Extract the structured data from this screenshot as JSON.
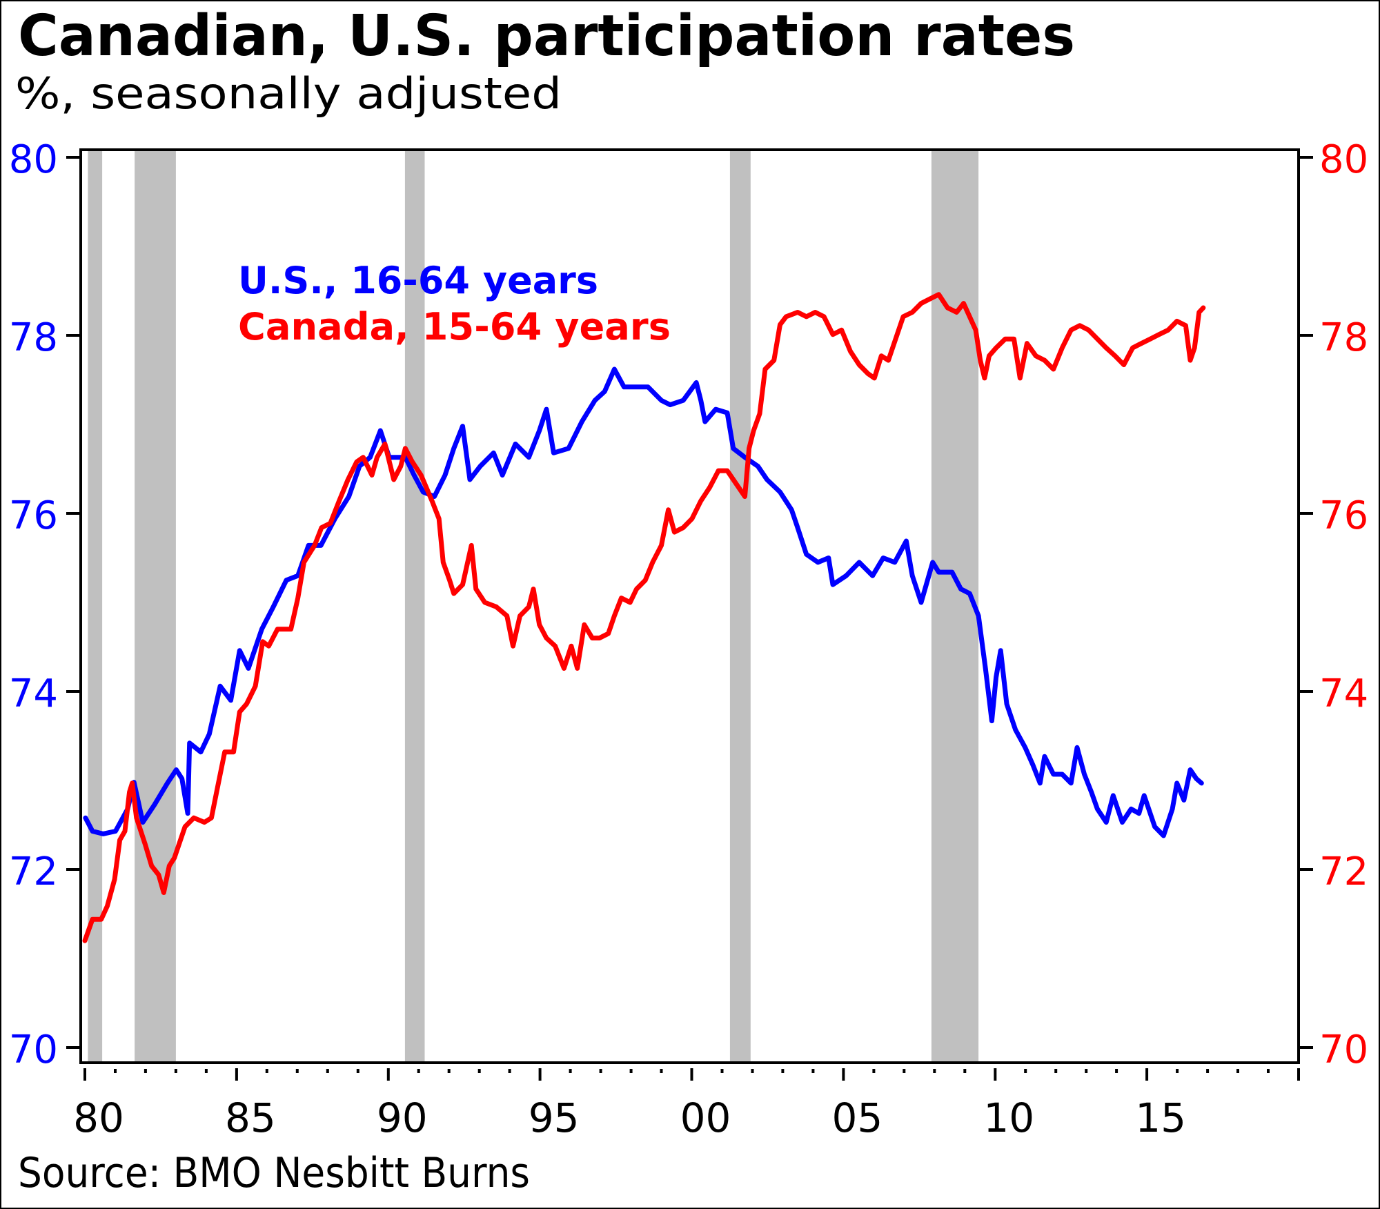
{
  "chart_data": {
    "type": "line",
    "title": "Canadian, U.S. participation rates",
    "subtitle": "%, seasonally adjusted",
    "source": "Source: BMO Nesbitt Burns",
    "xlabel": "",
    "ylabel": "",
    "xlim": [
      1980,
      2020
    ],
    "ylim": [
      70,
      80
    ],
    "ylim_right": [
      70,
      80
    ],
    "grid": false,
    "legend_placement": "top-left",
    "x_ticks": [
      {
        "value": 1980,
        "label": "80"
      },
      {
        "value": 1985,
        "label": "85"
      },
      {
        "value": 1990,
        "label": "90"
      },
      {
        "value": 1995,
        "label": "95"
      },
      {
        "value": 2000,
        "label": "00"
      },
      {
        "value": 2005,
        "label": "05"
      },
      {
        "value": 2010,
        "label": "10"
      },
      {
        "value": 2015,
        "label": "15"
      }
    ],
    "y_ticks_left": [
      {
        "value": 80,
        "label": "80"
      },
      {
        "value": 78,
        "label": "78"
      },
      {
        "value": 76,
        "label": "76"
      },
      {
        "value": 74,
        "label": "74"
      },
      {
        "value": 72,
        "label": "72"
      },
      {
        "value": 70,
        "label": "70"
      }
    ],
    "y_ticks_right": [
      {
        "value": 80,
        "label": "80"
      },
      {
        "value": 78,
        "label": "78"
      },
      {
        "value": 76,
        "label": "76"
      },
      {
        "value": 74,
        "label": "74"
      },
      {
        "value": 72,
        "label": "72"
      },
      {
        "value": 70,
        "label": "70"
      }
    ],
    "recessions": [
      [
        1980.1,
        1980.57
      ],
      [
        1981.64,
        1983.0
      ],
      [
        1990.55,
        1991.2
      ],
      [
        2001.26,
        2001.94
      ],
      [
        2007.9,
        2009.45
      ]
    ],
    "series": [
      {
        "name": "U.S., 16-64 years",
        "axis": "left",
        "color": "#0000ff",
        "points": [
          [
            1980.02,
            72.58
          ],
          [
            1980.25,
            72.43
          ],
          [
            1980.6,
            72.4
          ],
          [
            1981.01,
            72.43
          ],
          [
            1981.41,
            72.68
          ],
          [
            1981.62,
            72.98
          ],
          [
            1981.91,
            72.53
          ],
          [
            1982.3,
            72.73
          ],
          [
            1982.72,
            72.97
          ],
          [
            1983.01,
            73.12
          ],
          [
            1983.2,
            73.02
          ],
          [
            1983.39,
            72.63
          ],
          [
            1983.45,
            73.42
          ],
          [
            1983.82,
            73.32
          ],
          [
            1984.1,
            73.52
          ],
          [
            1984.46,
            74.06
          ],
          [
            1984.81,
            73.9
          ],
          [
            1985.1,
            74.46
          ],
          [
            1985.39,
            74.26
          ],
          [
            1985.83,
            74.7
          ],
          [
            1986.21,
            74.95
          ],
          [
            1986.64,
            75.25
          ],
          [
            1987.02,
            75.3
          ],
          [
            1987.37,
            75.64
          ],
          [
            1987.78,
            75.64
          ],
          [
            1988.24,
            75.94
          ],
          [
            1988.7,
            76.19
          ],
          [
            1989.05,
            76.53
          ],
          [
            1989.4,
            76.63
          ],
          [
            1989.74,
            76.93
          ],
          [
            1990.03,
            76.63
          ],
          [
            1990.56,
            76.63
          ],
          [
            1990.85,
            76.43
          ],
          [
            1991.15,
            76.24
          ],
          [
            1991.52,
            76.19
          ],
          [
            1991.87,
            76.43
          ],
          [
            1992.16,
            76.73
          ],
          [
            1992.45,
            76.98
          ],
          [
            1992.69,
            76.38
          ],
          [
            1993.03,
            76.53
          ],
          [
            1993.47,
            76.68
          ],
          [
            1993.76,
            76.43
          ],
          [
            1994.19,
            76.78
          ],
          [
            1994.63,
            76.63
          ],
          [
            1994.98,
            76.93
          ],
          [
            1995.21,
            77.17
          ],
          [
            1995.45,
            76.68
          ],
          [
            1995.94,
            76.73
          ],
          [
            1996.38,
            77.03
          ],
          [
            1996.81,
            77.27
          ],
          [
            1997.13,
            77.37
          ],
          [
            1997.45,
            77.62
          ],
          [
            1997.77,
            77.42
          ],
          [
            1998.12,
            77.42
          ],
          [
            1998.56,
            77.42
          ],
          [
            1999.0,
            77.27
          ],
          [
            1999.29,
            77.22
          ],
          [
            1999.72,
            77.27
          ],
          [
            2000.15,
            77.47
          ],
          [
            2000.3,
            77.27
          ],
          [
            2000.44,
            77.03
          ],
          [
            2000.79,
            77.17
          ],
          [
            2001.17,
            77.13
          ],
          [
            2001.37,
            76.73
          ],
          [
            2001.75,
            76.63
          ],
          [
            2002.18,
            76.53
          ],
          [
            2002.48,
            76.38
          ],
          [
            2002.91,
            76.24
          ],
          [
            2003.29,
            76.04
          ],
          [
            2003.49,
            75.84
          ],
          [
            2003.78,
            75.54
          ],
          [
            2004.16,
            75.45
          ],
          [
            2004.51,
            75.5
          ],
          [
            2004.65,
            75.2
          ],
          [
            2005.09,
            75.3
          ],
          [
            2005.52,
            75.45
          ],
          [
            2005.96,
            75.3
          ],
          [
            2006.31,
            75.5
          ],
          [
            2006.69,
            75.45
          ],
          [
            2007.07,
            75.69
          ],
          [
            2007.27,
            75.3
          ],
          [
            2007.56,
            75.0
          ],
          [
            2007.94,
            75.45
          ],
          [
            2008.14,
            75.34
          ],
          [
            2008.58,
            75.34
          ],
          [
            2008.87,
            75.15
          ],
          [
            2009.16,
            75.1
          ],
          [
            2009.45,
            74.85
          ],
          [
            2009.68,
            74.26
          ],
          [
            2009.89,
            73.67
          ],
          [
            2010.03,
            74.16
          ],
          [
            2010.18,
            74.46
          ],
          [
            2010.38,
            73.86
          ],
          [
            2010.67,
            73.57
          ],
          [
            2010.99,
            73.37
          ],
          [
            2011.25,
            73.17
          ],
          [
            2011.48,
            72.97
          ],
          [
            2011.63,
            73.27
          ],
          [
            2011.92,
            73.07
          ],
          [
            2012.21,
            73.07
          ],
          [
            2012.5,
            72.97
          ],
          [
            2012.7,
            73.37
          ],
          [
            2012.94,
            73.07
          ],
          [
            2013.17,
            72.87
          ],
          [
            2013.37,
            72.68
          ],
          [
            2013.66,
            72.53
          ],
          [
            2013.89,
            72.83
          ],
          [
            2014.19,
            72.53
          ],
          [
            2014.48,
            72.68
          ],
          [
            2014.74,
            72.63
          ],
          [
            2014.91,
            72.83
          ],
          [
            2015.26,
            72.48
          ],
          [
            2015.55,
            72.38
          ],
          [
            2015.84,
            72.68
          ],
          [
            2015.99,
            72.97
          ],
          [
            2016.22,
            72.78
          ],
          [
            2016.43,
            73.12
          ],
          [
            2016.63,
            73.02
          ],
          [
            2016.8,
            72.97
          ]
        ]
      },
      {
        "name": "Canada, 15-64 years",
        "axis": "right",
        "color": "#ff0000",
        "points": [
          [
            1980.0,
            71.2
          ],
          [
            1980.25,
            71.44
          ],
          [
            1980.54,
            71.44
          ],
          [
            1980.74,
            71.59
          ],
          [
            1980.98,
            71.89
          ],
          [
            1981.15,
            72.33
          ],
          [
            1981.32,
            72.43
          ],
          [
            1981.47,
            72.87
          ],
          [
            1981.56,
            72.97
          ],
          [
            1981.7,
            72.58
          ],
          [
            1981.99,
            72.28
          ],
          [
            1982.2,
            72.04
          ],
          [
            1982.43,
            71.94
          ],
          [
            1982.6,
            71.74
          ],
          [
            1982.78,
            72.04
          ],
          [
            1982.95,
            72.13
          ],
          [
            1983.3,
            72.48
          ],
          [
            1983.59,
            72.58
          ],
          [
            1983.94,
            72.53
          ],
          [
            1984.17,
            72.58
          ],
          [
            1984.4,
            72.97
          ],
          [
            1984.61,
            73.32
          ],
          [
            1984.9,
            73.32
          ],
          [
            1985.1,
            73.77
          ],
          [
            1985.33,
            73.86
          ],
          [
            1985.62,
            74.06
          ],
          [
            1985.86,
            74.56
          ],
          [
            1986.06,
            74.51
          ],
          [
            1986.35,
            74.7
          ],
          [
            1986.79,
            74.7
          ],
          [
            1987.02,
            75.05
          ],
          [
            1987.22,
            75.45
          ],
          [
            1987.57,
            75.64
          ],
          [
            1987.8,
            75.84
          ],
          [
            1988.09,
            75.89
          ],
          [
            1988.38,
            76.14
          ],
          [
            1988.67,
            76.38
          ],
          [
            1988.96,
            76.58
          ],
          [
            1989.17,
            76.63
          ],
          [
            1989.46,
            76.43
          ],
          [
            1989.63,
            76.63
          ],
          [
            1989.89,
            76.78
          ],
          [
            1990.18,
            76.38
          ],
          [
            1990.41,
            76.53
          ],
          [
            1990.56,
            76.73
          ],
          [
            1990.79,
            76.58
          ],
          [
            1991.08,
            76.43
          ],
          [
            1991.44,
            76.14
          ],
          [
            1991.67,
            75.94
          ],
          [
            1991.81,
            75.45
          ],
          [
            1992.02,
            75.25
          ],
          [
            1992.16,
            75.1
          ],
          [
            1992.45,
            75.2
          ],
          [
            1992.74,
            75.64
          ],
          [
            1992.89,
            75.15
          ],
          [
            1993.18,
            75.0
          ],
          [
            1993.56,
            74.95
          ],
          [
            1993.91,
            74.85
          ],
          [
            1994.11,
            74.51
          ],
          [
            1994.34,
            74.85
          ],
          [
            1994.63,
            74.95
          ],
          [
            1994.78,
            75.15
          ],
          [
            1994.98,
            74.75
          ],
          [
            1995.21,
            74.6
          ],
          [
            1995.5,
            74.51
          ],
          [
            1995.79,
            74.26
          ],
          [
            1996.03,
            74.51
          ],
          [
            1996.23,
            74.26
          ],
          [
            1996.46,
            74.75
          ],
          [
            1996.72,
            74.6
          ],
          [
            1996.96,
            74.6
          ],
          [
            1997.25,
            74.65
          ],
          [
            1997.45,
            74.85
          ],
          [
            1997.68,
            75.05
          ],
          [
            1997.97,
            75.0
          ],
          [
            1998.18,
            75.15
          ],
          [
            1998.47,
            75.25
          ],
          [
            1998.71,
            75.45
          ],
          [
            1999.0,
            75.64
          ],
          [
            1999.23,
            76.04
          ],
          [
            1999.43,
            75.79
          ],
          [
            1999.72,
            75.84
          ],
          [
            2000.01,
            75.94
          ],
          [
            2000.3,
            76.14
          ],
          [
            2000.59,
            76.29
          ],
          [
            2000.88,
            76.48
          ],
          [
            2001.17,
            76.48
          ],
          [
            2001.55,
            76.29
          ],
          [
            2001.75,
            76.19
          ],
          [
            2001.89,
            76.73
          ],
          [
            2002.04,
            76.93
          ],
          [
            2002.24,
            77.12
          ],
          [
            2002.42,
            77.62
          ],
          [
            2002.71,
            77.72
          ],
          [
            2002.91,
            78.12
          ],
          [
            2003.11,
            78.21
          ],
          [
            2003.49,
            78.26
          ],
          [
            2003.78,
            78.21
          ],
          [
            2004.07,
            78.26
          ],
          [
            2004.36,
            78.21
          ],
          [
            2004.65,
            78.01
          ],
          [
            2004.94,
            78.06
          ],
          [
            2005.23,
            77.82
          ],
          [
            2005.52,
            77.67
          ],
          [
            2005.81,
            77.57
          ],
          [
            2006.02,
            77.52
          ],
          [
            2006.25,
            77.77
          ],
          [
            2006.48,
            77.72
          ],
          [
            2006.77,
            78.01
          ],
          [
            2006.97,
            78.21
          ],
          [
            2007.27,
            78.26
          ],
          [
            2007.56,
            78.36
          ],
          [
            2007.85,
            78.41
          ],
          [
            2008.14,
            78.46
          ],
          [
            2008.43,
            78.31
          ],
          [
            2008.73,
            78.26
          ],
          [
            2008.96,
            78.36
          ],
          [
            2009.16,
            78.21
          ],
          [
            2009.36,
            78.06
          ],
          [
            2009.51,
            77.72
          ],
          [
            2009.65,
            77.52
          ],
          [
            2009.8,
            77.77
          ],
          [
            2010.03,
            77.86
          ],
          [
            2010.33,
            77.96
          ],
          [
            2010.62,
            77.96
          ],
          [
            2010.82,
            77.52
          ],
          [
            2011.05,
            77.91
          ],
          [
            2011.34,
            77.77
          ],
          [
            2011.63,
            77.72
          ],
          [
            2011.92,
            77.62
          ],
          [
            2012.21,
            77.86
          ],
          [
            2012.5,
            78.06
          ],
          [
            2012.79,
            78.11
          ],
          [
            2013.08,
            78.06
          ],
          [
            2013.37,
            77.96
          ],
          [
            2013.66,
            77.86
          ],
          [
            2013.95,
            77.77
          ],
          [
            2014.24,
            77.67
          ],
          [
            2014.53,
            77.86
          ],
          [
            2014.82,
            77.91
          ],
          [
            2015.11,
            77.96
          ],
          [
            2015.4,
            78.01
          ],
          [
            2015.7,
            78.06
          ],
          [
            2015.99,
            78.16
          ],
          [
            2016.28,
            78.11
          ],
          [
            2016.43,
            77.72
          ],
          [
            2016.57,
            77.86
          ],
          [
            2016.72,
            78.26
          ],
          [
            2016.86,
            78.31
          ]
        ]
      }
    ]
  },
  "colors": {
    "us_blue": "#0000ff",
    "canada_red": "#ff0000",
    "recession_gray": "#c0c0c0",
    "axis_black": "#000000"
  }
}
